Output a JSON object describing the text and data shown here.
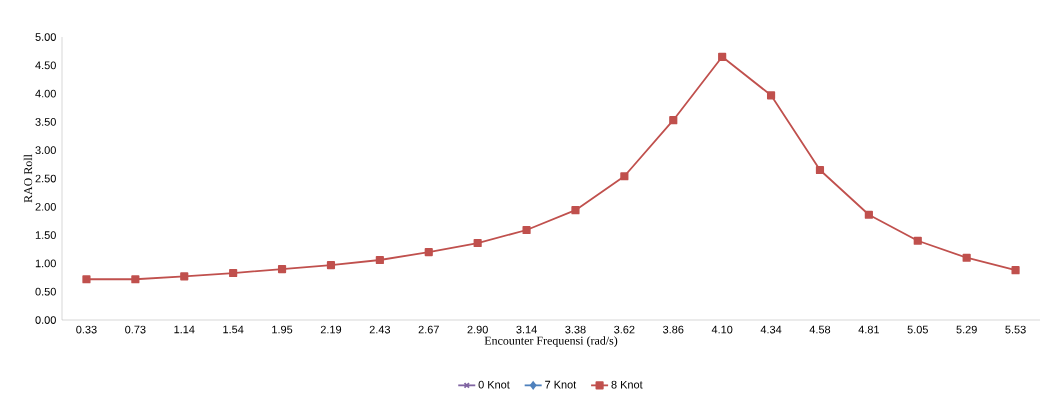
{
  "chart_data": {
    "type": "line",
    "xlabel": "Encounter Frequensi (rad/s)",
    "ylabel": "RAO Roll",
    "categories": [
      "0.33",
      "0.73",
      "1.14",
      "1.54",
      "1.95",
      "2.19",
      "2.43",
      "2.67",
      "2.90",
      "3.14",
      "3.38",
      "3.62",
      "3.86",
      "4.10",
      "4.34",
      "4.58",
      "4.81",
      "5.05",
      "5.29",
      "5.53"
    ],
    "series": [
      {
        "name": "0 Knot",
        "color": "#8064a2",
        "marker": "cross",
        "values": [
          null,
          null,
          null,
          null,
          null,
          null,
          null,
          null,
          null,
          null,
          null,
          null,
          null,
          null,
          null,
          null,
          null,
          null,
          null,
          null
        ]
      },
      {
        "name": "7 Knot",
        "color": "#4f81bd",
        "marker": "diamond",
        "values": [
          null,
          null,
          null,
          null,
          null,
          null,
          null,
          null,
          null,
          null,
          null,
          null,
          null,
          null,
          null,
          null,
          null,
          null,
          null,
          null
        ]
      },
      {
        "name": "8 Knot",
        "color": "#c0504d",
        "marker": "square",
        "values": [
          0.72,
          0.72,
          0.77,
          0.83,
          0.9,
          0.97,
          1.06,
          1.2,
          1.36,
          1.59,
          1.94,
          2.54,
          3.53,
          4.65,
          3.97,
          2.65,
          1.86,
          1.4,
          1.1,
          0.88
        ]
      }
    ],
    "ylim": [
      0,
      5
    ],
    "yticks": [
      {
        "value": 0,
        "label": "0.00"
      },
      {
        "value": 0.5,
        "label": "0.50"
      },
      {
        "value": 1,
        "label": "1.00"
      },
      {
        "value": 1.5,
        "label": "1.50"
      },
      {
        "value": 2,
        "label": "2.00"
      },
      {
        "value": 2.5,
        "label": "2.50"
      },
      {
        "value": 3,
        "label": "3.00"
      },
      {
        "value": 3.5,
        "label": "3.50"
      },
      {
        "value": 4,
        "label": "4.00"
      },
      {
        "value": 4.5,
        "label": "4.50"
      },
      {
        "value": 5,
        "label": "5.00"
      }
    ],
    "grid": false,
    "legend": "bottom",
    "line_style": "solid"
  }
}
